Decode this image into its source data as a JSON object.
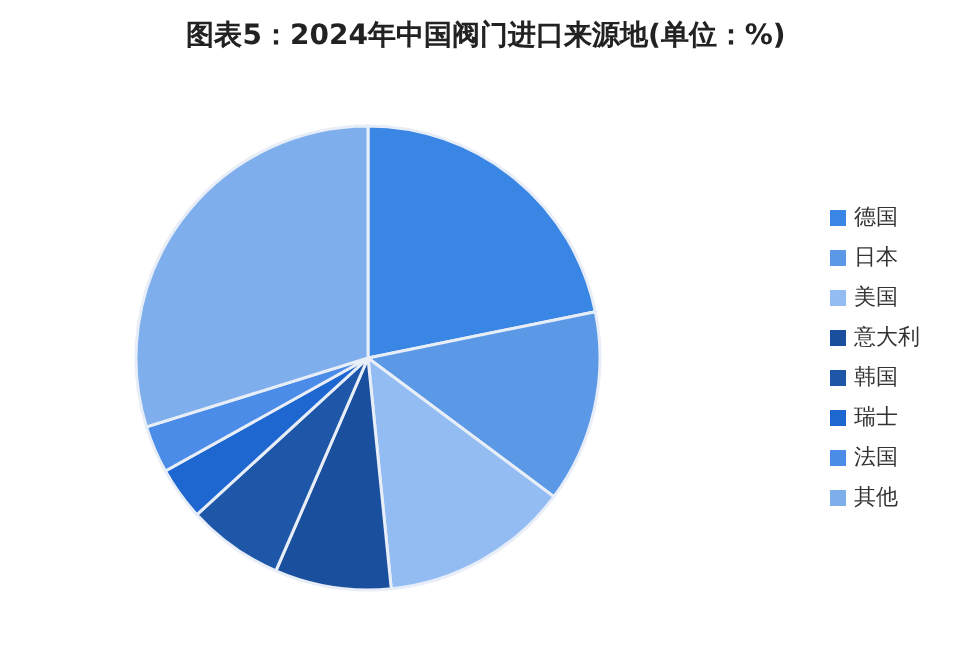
{
  "chart_data": {
    "type": "pie",
    "title": "图表5：2024年中国阀门进口来源地(单位：%)",
    "categories": [
      "德国",
      "日本",
      "美国",
      "意大利",
      "韩国",
      "瑞士",
      "法国",
      "其他"
    ],
    "values": [
      21.8,
      13.4,
      13.2,
      8.1,
      6.7,
      3.7,
      3.3,
      29.8
    ],
    "colors": [
      "#3a86e4",
      "#5b98e6",
      "#93bcf2",
      "#1a4f9e",
      "#1f57a8",
      "#1e66d0",
      "#4a8ce8",
      "#7eaeec"
    ],
    "legend": "right"
  }
}
